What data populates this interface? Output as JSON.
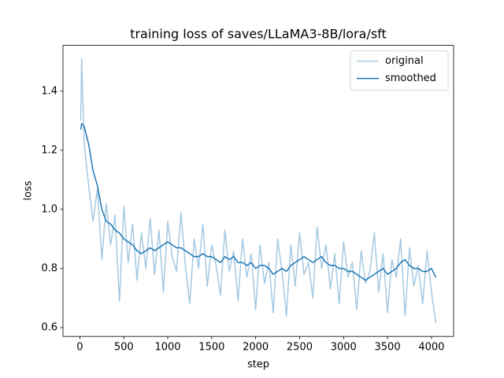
{
  "chart_data": {
    "type": "line",
    "title": "training loss of saves/LLaMA3-8B/lora/sft",
    "xlabel": "step",
    "ylabel": "loss",
    "x": [
      10,
      20,
      50,
      100,
      150,
      200,
      250,
      300,
      350,
      400,
      450,
      500,
      550,
      600,
      650,
      700,
      750,
      800,
      850,
      900,
      950,
      1000,
      1050,
      1100,
      1150,
      1200,
      1250,
      1300,
      1350,
      1400,
      1450,
      1500,
      1550,
      1600,
      1650,
      1700,
      1750,
      1800,
      1850,
      1900,
      1950,
      2000,
      2050,
      2100,
      2150,
      2200,
      2250,
      2300,
      2350,
      2400,
      2450,
      2500,
      2550,
      2600,
      2650,
      2700,
      2750,
      2800,
      2850,
      2900,
      2950,
      3000,
      3050,
      3100,
      3150,
      3200,
      3250,
      3300,
      3350,
      3400,
      3450,
      3500,
      3550,
      3600,
      3650,
      3700,
      3750,
      3800,
      3850,
      3900,
      3950,
      4000,
      4050
    ],
    "series": [
      {
        "name": "original",
        "color": "#1f77b4",
        "alpha": 0.4,
        "values": [
          1.3,
          1.51,
          1.22,
          1.08,
          0.96,
          1.07,
          0.83,
          1.02,
          0.88,
          0.98,
          0.69,
          1.01,
          0.82,
          0.95,
          0.76,
          0.92,
          0.8,
          0.97,
          0.78,
          0.93,
          0.72,
          0.96,
          0.84,
          0.79,
          0.99,
          0.81,
          0.68,
          0.9,
          0.8,
          0.95,
          0.74,
          0.88,
          0.81,
          0.71,
          0.93,
          0.79,
          0.86,
          0.69,
          0.9,
          0.77,
          0.85,
          0.66,
          0.88,
          0.75,
          0.82,
          0.65,
          0.9,
          0.79,
          0.64,
          0.88,
          0.74,
          0.92,
          0.78,
          0.82,
          0.7,
          0.94,
          0.8,
          0.88,
          0.73,
          0.85,
          0.68,
          0.89,
          0.77,
          0.82,
          0.66,
          0.86,
          0.75,
          0.79,
          0.92,
          0.72,
          0.85,
          0.65,
          0.83,
          0.77,
          0.9,
          0.64,
          0.87,
          0.74,
          0.81,
          0.68,
          0.86,
          0.72,
          0.615
        ]
      },
      {
        "name": "smoothed",
        "color": "#1f77b4",
        "alpha": 1,
        "values": [
          1.27,
          1.29,
          1.28,
          1.22,
          1.13,
          1.08,
          1.0,
          0.96,
          0.95,
          0.93,
          0.92,
          0.9,
          0.89,
          0.88,
          0.86,
          0.85,
          0.86,
          0.87,
          0.86,
          0.87,
          0.88,
          0.89,
          0.88,
          0.87,
          0.87,
          0.86,
          0.85,
          0.84,
          0.84,
          0.85,
          0.84,
          0.84,
          0.83,
          0.82,
          0.84,
          0.83,
          0.84,
          0.82,
          0.82,
          0.81,
          0.82,
          0.8,
          0.81,
          0.81,
          0.8,
          0.78,
          0.79,
          0.8,
          0.79,
          0.81,
          0.82,
          0.83,
          0.84,
          0.83,
          0.82,
          0.83,
          0.84,
          0.82,
          0.81,
          0.81,
          0.8,
          0.8,
          0.79,
          0.79,
          0.78,
          0.77,
          0.76,
          0.77,
          0.78,
          0.79,
          0.8,
          0.78,
          0.79,
          0.8,
          0.82,
          0.83,
          0.81,
          0.8,
          0.8,
          0.79,
          0.79,
          0.8,
          0.77
        ]
      }
    ],
    "xlim": [
      -192,
      4252
    ],
    "ylim": [
      0.57,
      1.555
    ],
    "xticks": [
      0,
      500,
      1000,
      1500,
      2000,
      2500,
      3000,
      3500,
      4000
    ],
    "yticks": [
      0.6,
      0.8,
      {
        "value": 1,
        "label": "1.0"
      },
      1.2,
      1.4
    ],
    "legend": "upper right"
  }
}
